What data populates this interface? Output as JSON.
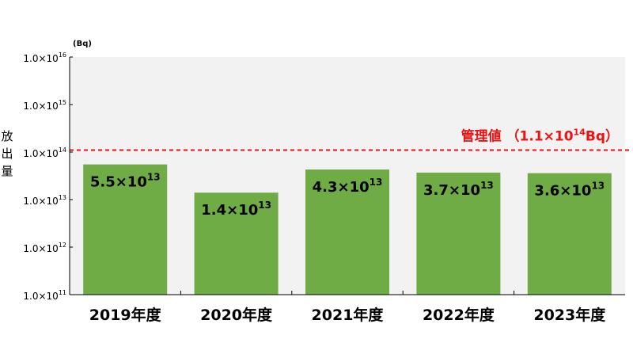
{
  "chart_data": {
    "type": "bar",
    "yscale": "log",
    "ylim": [
      100000000000.0,
      1e+16
    ],
    "yunit": "(Bq)",
    "ylabel_chars": [
      "放",
      "出",
      "量"
    ],
    "yticks": [
      {
        "mant": "1.0×10",
        "exp": "16"
      },
      {
        "mant": "1.0×10",
        "exp": "15"
      },
      {
        "mant": "1.0×10",
        "exp": "14"
      },
      {
        "mant": "1.0×10",
        "exp": "13"
      },
      {
        "mant": "1.0×10",
        "exp": "12"
      },
      {
        "mant": "1.0×10",
        "exp": "11"
      }
    ],
    "categories": [
      "2019年度",
      "2020年度",
      "2021年度",
      "2022年度",
      "2023年度"
    ],
    "values": [
      55000000000000.0,
      14000000000000.0,
      43000000000000.0,
      37000000000000.0,
      36000000000000.0
    ],
    "data_labels": [
      {
        "mant": "5.5×10",
        "exp": "13"
      },
      {
        "mant": "1.4×10",
        "exp": "13"
      },
      {
        "mant": "4.3×10",
        "exp": "13"
      },
      {
        "mant": "3.7×10",
        "exp": "13"
      },
      {
        "mant": "3.6×10",
        "exp": "13"
      }
    ],
    "reference_line": {
      "value": 110000000000000.0,
      "label_prefix": "管理値 （1.1×10",
      "label_exp": "14",
      "label_suffix": "Bq）",
      "color": "#ee1111"
    },
    "bar_color": "#6fac46",
    "plot_bg": "#f2f2f2",
    "grid": false
  }
}
